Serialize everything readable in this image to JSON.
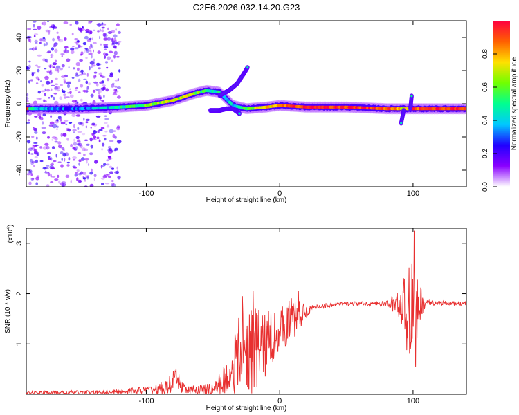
{
  "title": "C2E6.2026.032.14.20.G23",
  "chart_data": [
    {
      "type": "heatmap",
      "name": "spectrogram",
      "xlabel": "Height of straight line (km)",
      "ylabel": "Frequency (Hz)",
      "xlim": [
        -190,
        140
      ],
      "ylim": [
        -50,
        50
      ],
      "xticks": [
        -100,
        0,
        100
      ],
      "yticks": [
        -40,
        -20,
        0,
        20,
        40
      ],
      "colorbar": {
        "label": "Normalized spectral amplitude",
        "range": [
          0,
          1
        ],
        "ticks": [
          0,
          0.2,
          0.4,
          0.6,
          0.8
        ],
        "colormap": [
          "#ffffff",
          "#8a00ff",
          "#2000ff",
          "#00c8ff",
          "#00ff90",
          "#70ff00",
          "#ffe000",
          "#ff6000",
          "#ff0040"
        ]
      },
      "ridge": {
        "points": [
          {
            "x": -188,
            "y": -3,
            "amp": 0.45
          },
          {
            "x": -170,
            "y": -3,
            "amp": 0.35
          },
          {
            "x": -150,
            "y": -3,
            "amp": 0.3
          },
          {
            "x": -120,
            "y": -2,
            "amp": 0.45
          },
          {
            "x": -100,
            "y": -1,
            "amp": 0.6
          },
          {
            "x": -80,
            "y": 2,
            "amp": 0.7
          },
          {
            "x": -65,
            "y": 6,
            "amp": 0.65
          },
          {
            "x": -55,
            "y": 8,
            "amp": 0.5
          },
          {
            "x": -45,
            "y": 7,
            "amp": 0.45
          },
          {
            "x": -35,
            "y": -1,
            "amp": 0.4
          },
          {
            "x": -25,
            "y": -3,
            "amp": 0.6
          },
          {
            "x": -10,
            "y": -2,
            "amp": 0.75
          },
          {
            "x": 0,
            "y": -1,
            "amp": 0.85
          },
          {
            "x": 20,
            "y": -2,
            "amp": 0.95
          },
          {
            "x": 50,
            "y": -2,
            "amp": 0.95
          },
          {
            "x": 80,
            "y": -3,
            "amp": 0.9
          },
          {
            "x": 95,
            "y": -3,
            "amp": 0.7
          },
          {
            "x": 100,
            "y": -3,
            "amp": 0.9
          },
          {
            "x": 120,
            "y": -3,
            "amp": 0.95
          },
          {
            "x": 140,
            "y": -3,
            "amp": 0.9
          }
        ],
        "branches": [
          {
            "points": [
              {
                "x": -45,
                "y": 5
              },
              {
                "x": -38,
                "y": 8
              },
              {
                "x": -32,
                "y": 12
              },
              {
                "x": -27,
                "y": 18
              },
              {
                "x": -24,
                "y": 22
              }
            ]
          },
          {
            "points": [
              {
                "x": -52,
                "y": -4
              },
              {
                "x": -45,
                "y": -4
              },
              {
                "x": -40,
                "y": -3
              },
              {
                "x": -35,
                "y": -3
              },
              {
                "x": -30,
                "y": -6
              }
            ]
          },
          {
            "points": [
              {
                "x": 98,
                "y": -3
              },
              {
                "x": 99,
                "y": 5
              }
            ]
          },
          {
            "points": [
              {
                "x": 93,
                "y": -4
              },
              {
                "x": 91,
                "y": -12
              }
            ]
          }
        ]
      },
      "noise_region": {
        "x_range": [
          -190,
          -120
        ],
        "y_range": [
          -50,
          50
        ]
      }
    },
    {
      "type": "line",
      "name": "snr",
      "xlabel": "Height of straight line (km)",
      "ylabel": "SNR (10 * v/v)",
      "scale_note": {
        "base": "(x10",
        "exp": "4",
        "close": ")"
      },
      "xlim": [
        -190,
        140
      ],
      "ylim": [
        0,
        3.3
      ],
      "xticks": [
        -100,
        0,
        100
      ],
      "yticks": [
        1,
        2,
        3
      ],
      "color": "#e83030",
      "envelope": [
        {
          "x": -190,
          "base": 0.03,
          "amp": 0.03
        },
        {
          "x": -130,
          "base": 0.04,
          "amp": 0.04
        },
        {
          "x": -100,
          "base": 0.08,
          "amp": 0.08
        },
        {
          "x": -85,
          "base": 0.12,
          "amp": 0.15
        },
        {
          "x": -78,
          "base": 0.3,
          "amp": 0.25
        },
        {
          "x": -70,
          "base": 0.08,
          "amp": 0.08
        },
        {
          "x": -50,
          "base": 0.1,
          "amp": 0.12
        },
        {
          "x": -40,
          "base": 0.3,
          "amp": 0.35
        },
        {
          "x": -30,
          "base": 0.8,
          "amp": 0.8
        },
        {
          "x": -20,
          "base": 0.9,
          "amp": 0.9
        },
        {
          "x": -10,
          "base": 1.0,
          "amp": 0.7
        },
        {
          "x": 0,
          "base": 1.3,
          "amp": 0.4
        },
        {
          "x": 10,
          "base": 1.5,
          "amp": 0.5
        },
        {
          "x": 20,
          "base": 1.65,
          "amp": 0.1
        },
        {
          "x": 30,
          "base": 1.75,
          "amp": 0.05
        },
        {
          "x": 50,
          "base": 1.8,
          "amp": 0.04
        },
        {
          "x": 80,
          "base": 1.8,
          "amp": 0.05
        },
        {
          "x": 90,
          "base": 1.8,
          "amp": 0.3
        },
        {
          "x": 97,
          "base": 1.6,
          "amp": 1.0
        },
        {
          "x": 103,
          "base": 1.7,
          "amp": 0.6
        },
        {
          "x": 110,
          "base": 1.82,
          "amp": 0.05
        },
        {
          "x": 140,
          "base": 1.8,
          "amp": 0.04
        }
      ],
      "spikes": [
        {
          "x": -78,
          "y": 0.45
        },
        {
          "x": -28,
          "y": 1.95
        },
        {
          "x": -20,
          "y": 2.05
        },
        {
          "x": -14,
          "y": 1.35
        },
        {
          "x": 8,
          "y": 1.7
        },
        {
          "x": 14,
          "y": 2.05
        },
        {
          "x": 99,
          "y": 2.6
        },
        {
          "x": 101,
          "y": 3.25
        },
        {
          "x": 102,
          "y": 0.55
        }
      ]
    }
  ]
}
